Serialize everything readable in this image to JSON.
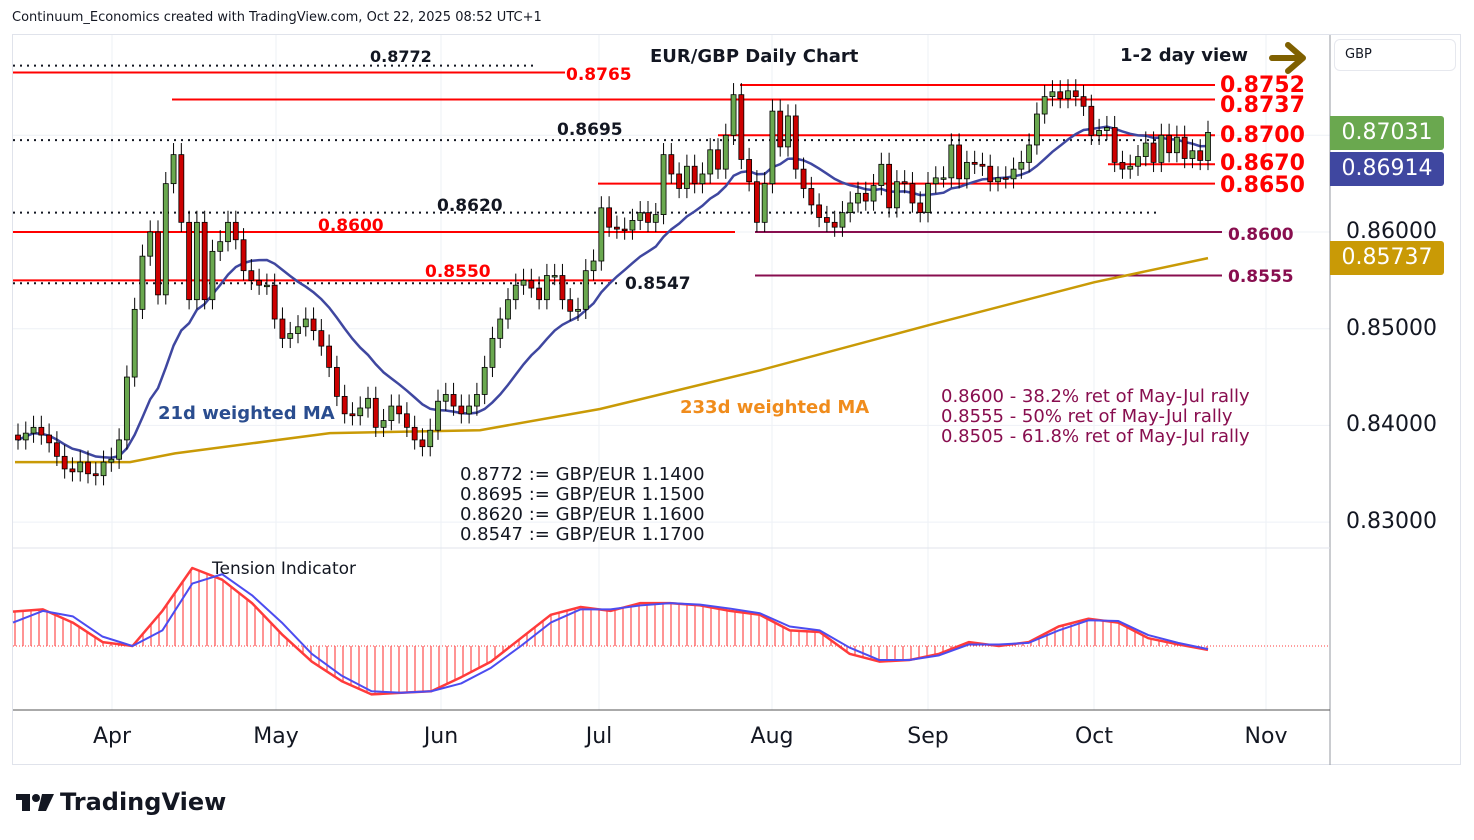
{
  "header": "Continuum_Economics created with TradingView.com, Oct 22, 2025 08:52 UTC+1",
  "currency_button": "GBP",
  "logo_text": "TradingView",
  "chart_data": {
    "type": "candlestick",
    "title": "EUR/GBP Daily Chart",
    "subtitle": "1-2 day view",
    "x_ticks": [
      "Apr",
      "May",
      "Jun",
      "Jul",
      "Aug",
      "Sep",
      "Oct",
      "Nov"
    ],
    "y_ticks": [
      "0.86000",
      "0.85000",
      "0.84000",
      "0.83000"
    ],
    "ylim": [
      0.8275,
      0.8805
    ],
    "grid": true,
    "price_tags": [
      {
        "label": "0.87031",
        "color": "#6aa84f",
        "meaning": "last price"
      },
      {
        "label": "0.86914",
        "color": "#3f47a0",
        "meaning": "21d weighted MA"
      },
      {
        "label": "0.85737",
        "color": "#c99a06",
        "meaning": "233d weighted MA"
      }
    ],
    "closes": [
      0.8385,
      0.8392,
      0.8398,
      0.839,
      0.8382,
      0.8368,
      0.8355,
      0.8352,
      0.8362,
      0.835,
      0.8348,
      0.8362,
      0.8365,
      0.8385,
      0.845,
      0.852,
      0.8575,
      0.86,
      0.8535,
      0.865,
      0.868,
      0.861,
      0.853,
      0.861,
      0.853,
      0.858,
      0.859,
      0.861,
      0.8592,
      0.856,
      0.855,
      0.8545,
      0.8545,
      0.851,
      0.849,
      0.8495,
      0.8502,
      0.851,
      0.8498,
      0.8482,
      0.846,
      0.843,
      0.8412,
      0.841,
      0.8418,
      0.8428,
      0.8398,
      0.8405,
      0.842,
      0.8412,
      0.8398,
      0.8385,
      0.8378,
      0.8395,
      0.8425,
      0.8432,
      0.842,
      0.8412,
      0.842,
      0.8432,
      0.846,
      0.849,
      0.851,
      0.853,
      0.8545,
      0.855,
      0.8542,
      0.853,
      0.8555,
      0.8555,
      0.853,
      0.8518,
      0.852,
      0.856,
      0.857,
      0.8625,
      0.8605,
      0.8603,
      0.8602,
      0.8612,
      0.862,
      0.861,
      0.8618,
      0.868,
      0.866,
      0.8645,
      0.8668,
      0.865,
      0.866,
      0.8685,
      0.8665,
      0.87,
      0.8742,
      0.8675,
      0.8652,
      0.861,
      0.865,
      0.8725,
      0.8688,
      0.872,
      0.8665,
      0.8645,
      0.8628,
      0.8615,
      0.861,
      0.8605,
      0.862,
      0.863,
      0.864,
      0.8632,
      0.8648,
      0.867,
      0.8625,
      0.8652,
      0.865,
      0.863,
      0.862,
      0.865,
      0.8656,
      0.8656,
      0.869,
      0.8655,
      0.8672,
      0.867,
      0.8668,
      0.8652,
      0.8656,
      0.8655,
      0.8665,
      0.8672,
      0.869,
      0.8722,
      0.874,
      0.8745,
      0.8738,
      0.8746,
      0.874,
      0.873,
      0.87,
      0.8705,
      0.8708,
      0.8672,
      0.8665,
      0.8668,
      0.8678,
      0.8692,
      0.8672,
      0.87,
      0.8682,
      0.8698,
      0.8676,
      0.8684,
      0.8674,
      0.8703
    ],
    "ma21_anchor_note": "",
    "ma233": [
      0.8362,
      0.8362,
      0.8371,
      0.8392,
      0.8395,
      0.8417,
      0.8457,
      0.8504,
      0.8548,
      0.8573
    ],
    "series_labels": {
      "ma21": "21d weighted MA",
      "ma233": "233d weighted MA"
    },
    "levels": [
      {
        "value": 0.8772,
        "label": "0.8772",
        "color": "#131722",
        "style": "dotted"
      },
      {
        "value": 0.8765,
        "label": "0.8765",
        "color": "#ff0000",
        "style": "solid"
      },
      {
        "value": 0.8752,
        "label": "0.8752",
        "color": "#ff0000",
        "style": "solid"
      },
      {
        "value": 0.8737,
        "label": "0.8737",
        "color": "#ff0000",
        "style": "solid"
      },
      {
        "value": 0.87,
        "label": "0.8700",
        "color": "#ff0000",
        "style": "solid"
      },
      {
        "value": 0.8695,
        "label": "0.8695",
        "color": "#131722",
        "style": "dotted"
      },
      {
        "value": 0.867,
        "label": "0.8670",
        "color": "#ff0000",
        "style": "solid"
      },
      {
        "value": 0.865,
        "label": "0.8650",
        "color": "#ff0000",
        "style": "solid"
      },
      {
        "value": 0.862,
        "label": "0.8620",
        "color": "#131722",
        "style": "dotted"
      },
      {
        "value": 0.86,
        "label": "0.8600",
        "color": "#ff0000",
        "style": "solid"
      },
      {
        "value": 0.86,
        "label": "0.8600",
        "color": "#880e4f",
        "style": "solid"
      },
      {
        "value": 0.8555,
        "label": "0.8555",
        "color": "#880e4f",
        "style": "solid"
      },
      {
        "value": 0.855,
        "label": "0.8550",
        "color": "#ff0000",
        "style": "solid"
      },
      {
        "value": 0.8547,
        "label": "0.8547",
        "color": "#131722",
        "style": "dotted"
      }
    ],
    "retracement_notes": [
      "0.8600 - 38.2% ret of May-Jul rally",
      "0.8555 - 50% ret of May-Jul rally",
      "0.8505 - 61.8% ret of May-Jul rally"
    ],
    "conversion_notes": [
      "0.8772 := GBP/EUR 1.1400",
      "0.8695 := GBP/EUR 1.1500",
      "0.8620 := GBP/EUR 1.1600",
      "0.8547 := GBP/EUR 1.1700"
    ],
    "indicator": {
      "title": "Tension Indicator",
      "main": [
        0.44,
        0.47,
        0.3,
        0.05,
        0.0,
        0.45,
        1.0,
        0.85,
        0.55,
        0.15,
        -0.2,
        -0.45,
        -0.62,
        -0.6,
        -0.58,
        -0.4,
        -0.2,
        0.1,
        0.4,
        0.5,
        0.45,
        0.55,
        0.55,
        0.52,
        0.45,
        0.4,
        0.2,
        0.18,
        -0.1,
        -0.2,
        -0.18,
        -0.1,
        0.05,
        0.0,
        0.05,
        0.25,
        0.35,
        0.3,
        0.1,
        0.02,
        -0.05
      ],
      "signal": [
        0.3,
        0.45,
        0.38,
        0.12,
        0.0,
        0.2,
        0.8,
        0.92,
        0.65,
        0.3,
        -0.1,
        -0.38,
        -0.58,
        -0.6,
        -0.58,
        -0.48,
        -0.28,
        0.0,
        0.3,
        0.47,
        0.47,
        0.52,
        0.55,
        0.53,
        0.48,
        0.42,
        0.25,
        0.2,
        -0.02,
        -0.18,
        -0.18,
        -0.12,
        0.02,
        0.02,
        0.04,
        0.2,
        0.33,
        0.32,
        0.14,
        0.04,
        -0.04
      ],
      "colors": {
        "main": "#ff3b3b",
        "signal": "#4c4cf0"
      }
    },
    "colors": {
      "up": "#6aa84f",
      "down": "#cc0000",
      "ma21": "#3f47a0",
      "ma233": "#c99a06",
      "arrow": "#7f6000"
    }
  }
}
